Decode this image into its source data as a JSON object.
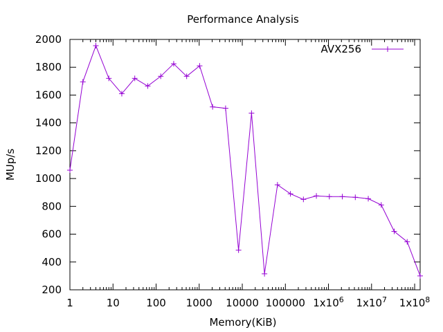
{
  "chart_data": {
    "type": "line",
    "title": "Performance Analysis",
    "xlabel": "Memory(KiB)",
    "ylabel": "MUp/s",
    "xscale": "log",
    "xlim": [
      1,
      134217728
    ],
    "ylim": [
      200,
      2000
    ],
    "grid": false,
    "legend_position": "top-right",
    "y_ticks": [
      200,
      400,
      600,
      800,
      1000,
      1200,
      1400,
      1600,
      1800,
      2000
    ],
    "x_ticks": [
      {
        "value": 1,
        "label": "1"
      },
      {
        "value": 10,
        "label": "10"
      },
      {
        "value": 100,
        "label": "100"
      },
      {
        "value": 1000,
        "label": "1000"
      },
      {
        "value": 10000,
        "label": "10000"
      },
      {
        "value": 100000,
        "label": "100000"
      },
      {
        "value": 1000000,
        "label": "1x10",
        "exp": "6"
      },
      {
        "value": 10000000,
        "label": "1x10",
        "exp": "7"
      },
      {
        "value": 100000000,
        "label": "1x10",
        "exp": "8"
      }
    ],
    "series": [
      {
        "name": "AVX256",
        "color": "#9400d3",
        "marker": "plus",
        "x": [
          1,
          2,
          4,
          8,
          16,
          32,
          64,
          128,
          256,
          512,
          1024,
          2048,
          4096,
          8192,
          16384,
          32768,
          65536,
          131072,
          262144,
          524288,
          1048576,
          2097152,
          4194304,
          8388608,
          16777216,
          33554432,
          67108864,
          134217728
        ],
        "y": [
          1060,
          1695,
          1955,
          1720,
          1610,
          1720,
          1665,
          1735,
          1825,
          1735,
          1810,
          1515,
          1505,
          485,
          1470,
          315,
          955,
          890,
          850,
          875,
          870,
          870,
          865,
          855,
          810,
          620,
          545,
          300
        ]
      }
    ]
  }
}
